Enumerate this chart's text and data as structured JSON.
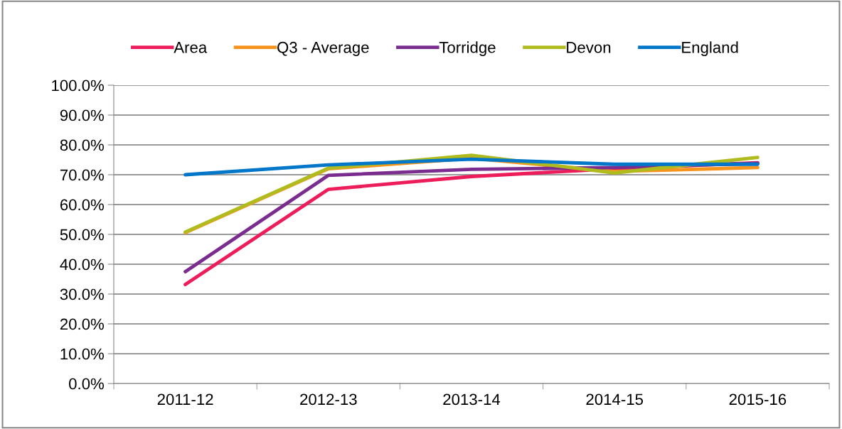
{
  "chart_data": {
    "type": "line",
    "categories": [
      "2011-12",
      "2012-13",
      "2013-14",
      "2014-15",
      "2015-16"
    ],
    "series": [
      {
        "name": "Area",
        "color": "#ed1c5a",
        "values": [
          33.2,
          65.1,
          69.4,
          72.0,
          74.0
        ]
      },
      {
        "name": "Q3 - Average",
        "color": "#f7941d",
        "values": [
          50.6,
          72.0,
          75.5,
          71.1,
          72.4
        ]
      },
      {
        "name": "Torridge",
        "color": "#7b2c8f",
        "values": [
          37.5,
          69.8,
          71.8,
          72.4,
          73.8
        ]
      },
      {
        "name": "Devon",
        "color": "#b0bb1e",
        "values": [
          50.8,
          72.2,
          76.5,
          70.6,
          75.8
        ]
      },
      {
        "name": "England",
        "color": "#0077c8",
        "values": [
          70.0,
          73.3,
          75.2,
          73.5,
          73.5
        ]
      }
    ],
    "ylim": [
      0,
      100
    ],
    "yticks": [
      {
        "value": 0,
        "label": "0.0%"
      },
      {
        "value": 10,
        "label": "10.0%"
      },
      {
        "value": 20,
        "label": "20.0%"
      },
      {
        "value": 30,
        "label": "30.0%"
      },
      {
        "value": 40,
        "label": "40.0%"
      },
      {
        "value": 50,
        "label": "50.0%"
      },
      {
        "value": 60,
        "label": "60.0%"
      },
      {
        "value": 70,
        "label": "70.0%"
      },
      {
        "value": 80,
        "label": "80.0%"
      },
      {
        "value": 90,
        "label": "90.0%"
      },
      {
        "value": 100,
        "label": "100.0%"
      }
    ],
    "grid": "y",
    "legend": "top",
    "marker": "none",
    "line_style": "solid"
  }
}
